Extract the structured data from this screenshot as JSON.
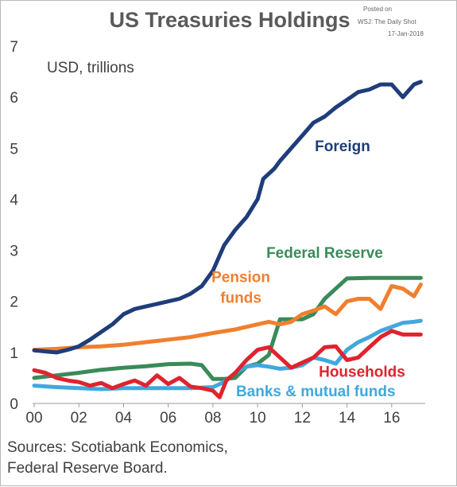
{
  "chart_data": {
    "type": "line",
    "title": "US Treasuries Holdings",
    "ylabel": "USD, trillions",
    "xlim": [
      2000,
      2017.5
    ],
    "ylim": [
      0,
      7
    ],
    "y_ticks": [
      0,
      1,
      2,
      3,
      4,
      5,
      6,
      7
    ],
    "x_ticks": [
      {
        "value": 2000,
        "label": "00"
      },
      {
        "value": 2002,
        "label": "02"
      },
      {
        "value": 2004,
        "label": "04"
      },
      {
        "value": 2006,
        "label": "06"
      },
      {
        "value": 2008,
        "label": "08"
      },
      {
        "value": 2010,
        "label": "10"
      },
      {
        "value": 2012,
        "label": "12"
      },
      {
        "value": 2014,
        "label": "14"
      },
      {
        "value": 2016,
        "label": "16"
      }
    ],
    "grid": false,
    "legend": "inline labels",
    "series": [
      {
        "name": "Foreign",
        "label_lines": [
          "Foreign"
        ],
        "color": "#1f3d7a",
        "points": [
          [
            2000,
            1.04
          ],
          [
            2000.5,
            1.02
          ],
          [
            2001,
            1.0
          ],
          [
            2001.5,
            1.05
          ],
          [
            2002,
            1.12
          ],
          [
            2002.5,
            1.25
          ],
          [
            2003,
            1.4
          ],
          [
            2003.5,
            1.55
          ],
          [
            2004,
            1.75
          ],
          [
            2004.5,
            1.85
          ],
          [
            2005,
            1.9
          ],
          [
            2005.5,
            1.95
          ],
          [
            2006,
            2.0
          ],
          [
            2006.5,
            2.05
          ],
          [
            2007,
            2.15
          ],
          [
            2007.5,
            2.3
          ],
          [
            2008,
            2.6
          ],
          [
            2008.5,
            3.1
          ],
          [
            2009,
            3.4
          ],
          [
            2009.5,
            3.65
          ],
          [
            2010,
            4.0
          ],
          [
            2010.25,
            4.4
          ],
          [
            2010.75,
            4.6
          ],
          [
            2011,
            4.75
          ],
          [
            2011.5,
            5.0
          ],
          [
            2012,
            5.25
          ],
          [
            2012.5,
            5.5
          ],
          [
            2013,
            5.62
          ],
          [
            2013.5,
            5.8
          ],
          [
            2014,
            5.95
          ],
          [
            2014.5,
            6.1
          ],
          [
            2015,
            6.15
          ],
          [
            2015.5,
            6.25
          ],
          [
            2016,
            6.25
          ],
          [
            2016.5,
            6.0
          ],
          [
            2017,
            6.25
          ],
          [
            2017.3,
            6.3
          ]
        ]
      },
      {
        "name": "Federal Reserve",
        "label_lines": [
          "Federal Reserve"
        ],
        "color": "#3a8a5a",
        "points": [
          [
            2000,
            0.5
          ],
          [
            2001,
            0.55
          ],
          [
            2002,
            0.6
          ],
          [
            2003,
            0.66
          ],
          [
            2004,
            0.7
          ],
          [
            2005,
            0.73
          ],
          [
            2006,
            0.77
          ],
          [
            2007,
            0.78
          ],
          [
            2007.5,
            0.75
          ],
          [
            2008,
            0.48
          ],
          [
            2008.5,
            0.48
          ],
          [
            2009,
            0.5
          ],
          [
            2009.5,
            0.72
          ],
          [
            2010,
            0.78
          ],
          [
            2010.5,
            0.95
          ],
          [
            2011,
            1.65
          ],
          [
            2011.5,
            1.65
          ],
          [
            2012,
            1.65
          ],
          [
            2012.5,
            1.75
          ],
          [
            2013,
            2.05
          ],
          [
            2013.5,
            2.25
          ],
          [
            2014,
            2.45
          ],
          [
            2015,
            2.46
          ],
          [
            2016,
            2.46
          ],
          [
            2017,
            2.46
          ],
          [
            2017.3,
            2.46
          ]
        ]
      },
      {
        "name": "Pension funds",
        "label_lines": [
          "Pension",
          "funds"
        ],
        "color": "#f07f2e",
        "points": [
          [
            2000,
            1.05
          ],
          [
            2001,
            1.07
          ],
          [
            2002,
            1.1
          ],
          [
            2003,
            1.12
          ],
          [
            2004,
            1.15
          ],
          [
            2005,
            1.2
          ],
          [
            2006,
            1.25
          ],
          [
            2007,
            1.3
          ],
          [
            2008,
            1.38
          ],
          [
            2009,
            1.45
          ],
          [
            2010,
            1.55
          ],
          [
            2010.5,
            1.6
          ],
          [
            2011,
            1.55
          ],
          [
            2011.5,
            1.6
          ],
          [
            2012,
            1.75
          ],
          [
            2012.5,
            1.82
          ],
          [
            2013,
            1.9
          ],
          [
            2013.5,
            1.75
          ],
          [
            2014,
            2.0
          ],
          [
            2014.5,
            2.05
          ],
          [
            2015,
            2.05
          ],
          [
            2015.5,
            1.85
          ],
          [
            2016,
            2.3
          ],
          [
            2016.5,
            2.25
          ],
          [
            2017,
            2.1
          ],
          [
            2017.3,
            2.33
          ]
        ]
      },
      {
        "name": "Households",
        "label_lines": [
          "Households"
        ],
        "color": "#e0232e",
        "points": [
          [
            2000,
            0.65
          ],
          [
            2000.5,
            0.6
          ],
          [
            2001,
            0.5
          ],
          [
            2001.5,
            0.45
          ],
          [
            2002,
            0.42
          ],
          [
            2002.5,
            0.35
          ],
          [
            2003,
            0.4
          ],
          [
            2003.5,
            0.3
          ],
          [
            2004,
            0.38
          ],
          [
            2004.5,
            0.45
          ],
          [
            2005,
            0.35
          ],
          [
            2005.5,
            0.55
          ],
          [
            2006,
            0.38
          ],
          [
            2006.5,
            0.5
          ],
          [
            2007,
            0.33
          ],
          [
            2007.5,
            0.3
          ],
          [
            2008,
            0.25
          ],
          [
            2008.3,
            0.12
          ],
          [
            2008.6,
            0.45
          ],
          [
            2009,
            0.6
          ],
          [
            2009.5,
            0.85
          ],
          [
            2010,
            1.05
          ],
          [
            2010.5,
            1.1
          ],
          [
            2011,
            0.9
          ],
          [
            2011.5,
            0.7
          ],
          [
            2012,
            0.8
          ],
          [
            2012.5,
            0.9
          ],
          [
            2013,
            1.1
          ],
          [
            2013.5,
            1.12
          ],
          [
            2014,
            0.85
          ],
          [
            2014.5,
            0.9
          ],
          [
            2015,
            1.1
          ],
          [
            2015.5,
            1.3
          ],
          [
            2016,
            1.42
          ],
          [
            2016.5,
            1.35
          ],
          [
            2017,
            1.35
          ],
          [
            2017.3,
            1.35
          ]
        ]
      },
      {
        "name": "Banks & mutual funds",
        "label_lines": [
          "Banks & mutual funds"
        ],
        "color": "#41a8dd",
        "points": [
          [
            2000,
            0.35
          ],
          [
            2001,
            0.32
          ],
          [
            2002,
            0.3
          ],
          [
            2003,
            0.28
          ],
          [
            2004,
            0.3
          ],
          [
            2005,
            0.3
          ],
          [
            2006,
            0.3
          ],
          [
            2007,
            0.3
          ],
          [
            2008,
            0.32
          ],
          [
            2008.5,
            0.42
          ],
          [
            2009,
            0.6
          ],
          [
            2009.5,
            0.72
          ],
          [
            2010,
            0.75
          ],
          [
            2010.5,
            0.72
          ],
          [
            2011,
            0.68
          ],
          [
            2011.5,
            0.7
          ],
          [
            2012,
            0.75
          ],
          [
            2012.5,
            0.9
          ],
          [
            2013,
            0.85
          ],
          [
            2013.5,
            0.78
          ],
          [
            2014,
            1.05
          ],
          [
            2014.5,
            1.2
          ],
          [
            2015,
            1.3
          ],
          [
            2015.5,
            1.42
          ],
          [
            2016,
            1.5
          ],
          [
            2016.5,
            1.58
          ],
          [
            2017,
            1.6
          ],
          [
            2017.3,
            1.62
          ]
        ]
      }
    ]
  },
  "posted": {
    "line1": "Posted on",
    "line2": "WSJ: The Daily Shot",
    "line3": "17-Jan-2018"
  },
  "sources": {
    "line1": "Sources: Scotiabank Economics,",
    "line2": "Federal Reserve Board."
  }
}
